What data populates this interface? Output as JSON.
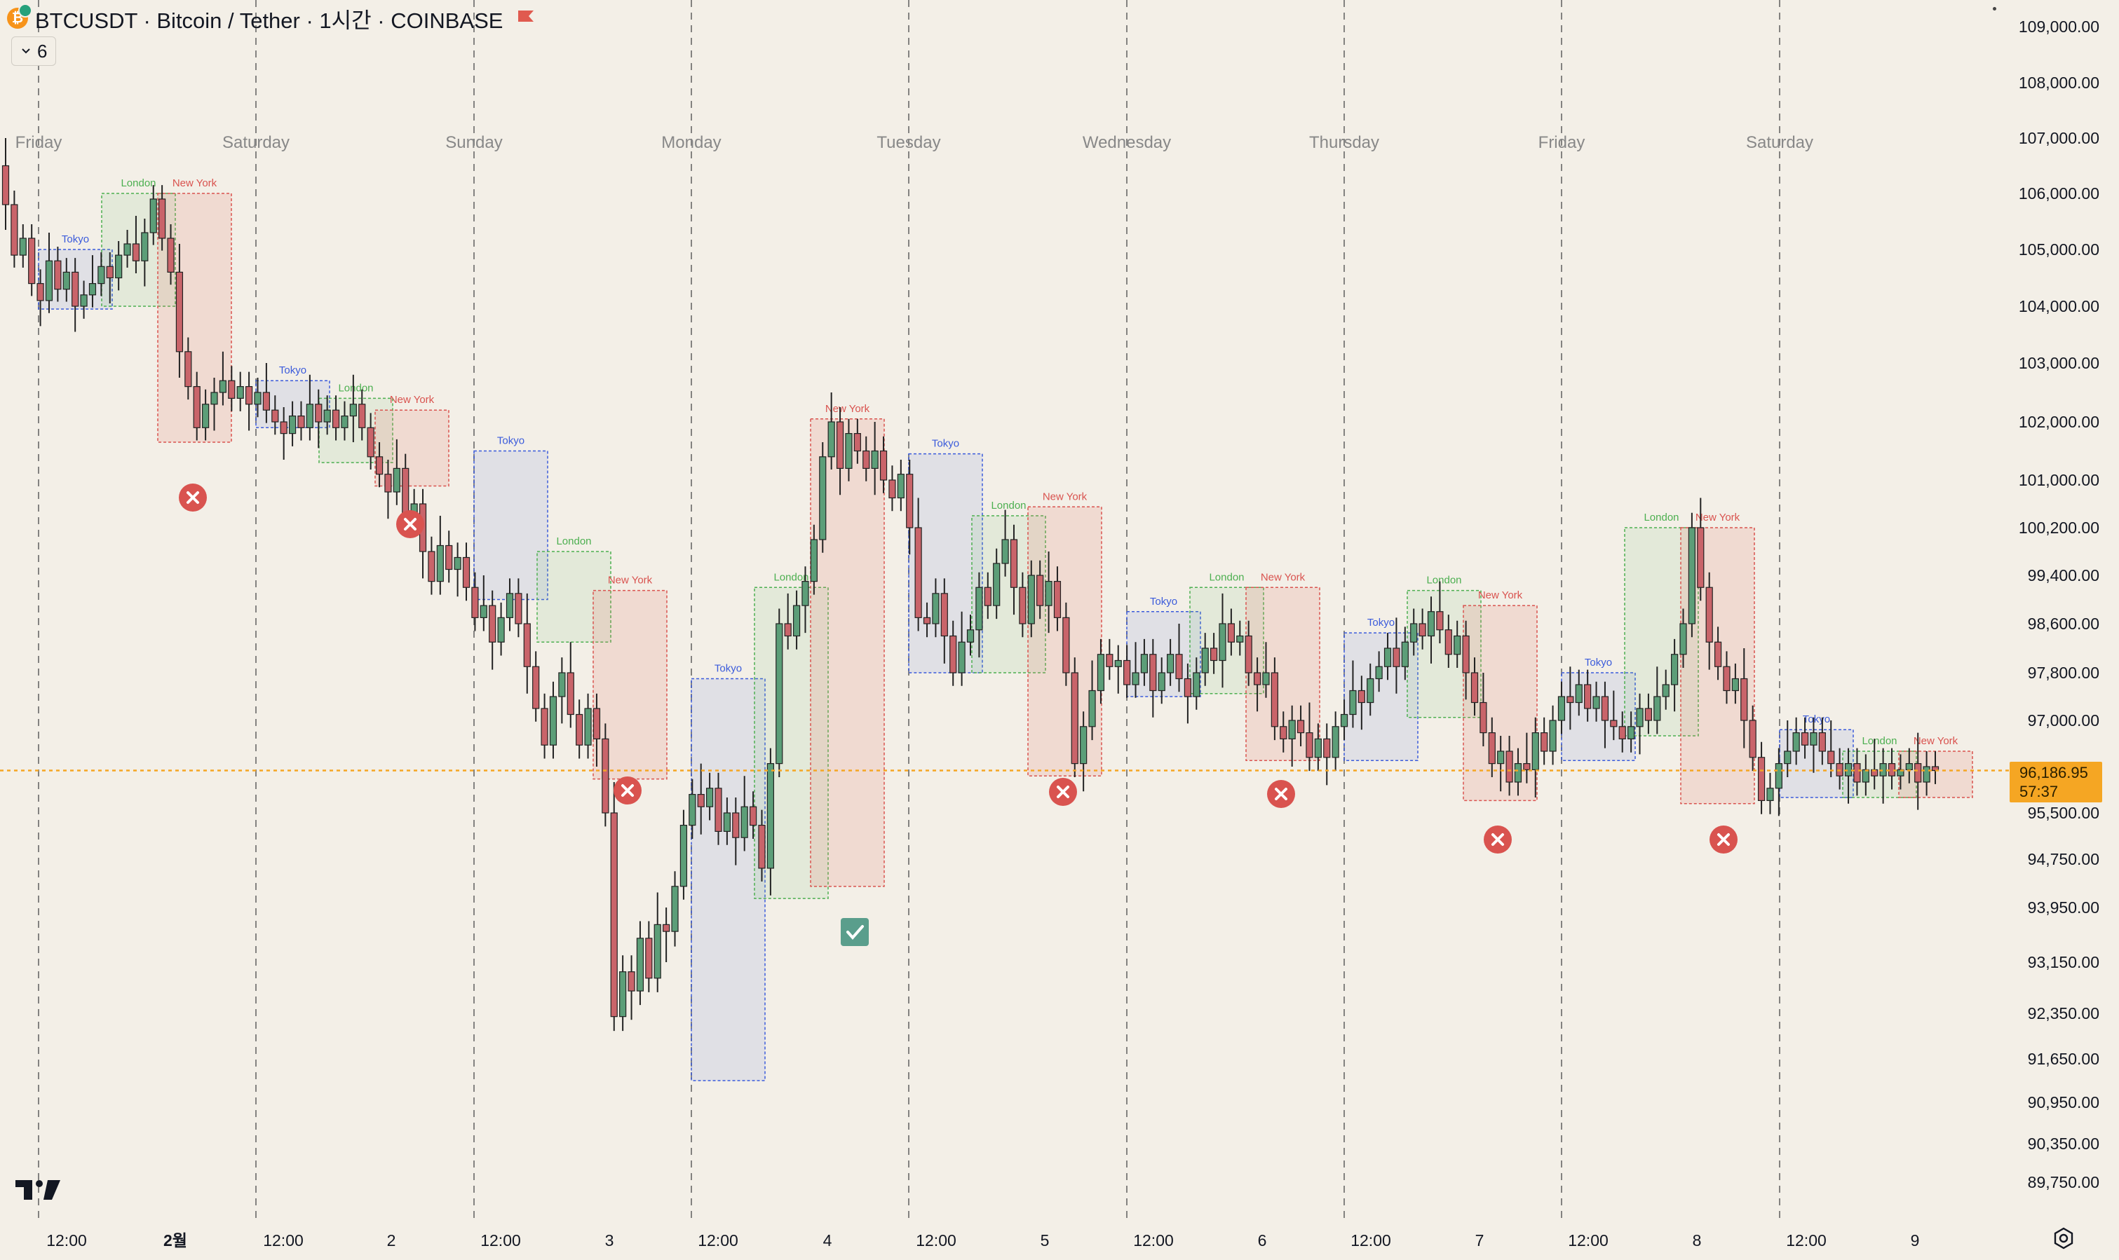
{
  "header": {
    "title": "BTCUSDT · Bitcoin / Tether · 1시간 · COINBASE",
    "icon": "bitcoin-tether-icon",
    "flag_icon": "flag-icon",
    "indicator_count": "6"
  },
  "price_axis": {
    "labels": [
      "109,000.00",
      "108,000.00",
      "107,000.00",
      "106,000.00",
      "105,000.00",
      "104,000.00",
      "103,000.00",
      "102,000.00",
      "101,000.00",
      "100,200.00",
      "99,400.00",
      "98,600.00",
      "97,800.00",
      "97,000.00",
      "95,500.00",
      "94,750.00",
      "93,950.00",
      "93,150.00",
      "92,350.00",
      "91,650.00",
      "90,950.00",
      "90,350.00",
      "89,750.00"
    ],
    "current_price": "96,186.95",
    "countdown": "57:37",
    "current_price_color": "#f5a623"
  },
  "day_labels": [
    "Friday",
    "Saturday",
    "Sunday",
    "Monday",
    "Tuesday",
    "Wednesday",
    "Thursday",
    "Friday",
    "Saturday"
  ],
  "time_axis": [
    "12:00",
    "2월",
    "12:00",
    "2",
    "12:00",
    "3",
    "12:00",
    "4",
    "12:00",
    "5",
    "12:00",
    "6",
    "12:00",
    "7",
    "12:00",
    "8",
    "12:00",
    "9"
  ],
  "sessions": [
    {
      "name": "Tokyo",
      "color": "#3b5bdb"
    },
    {
      "name": "London",
      "color": "#4caf50"
    },
    {
      "name": "New York",
      "color": "#d9534f"
    }
  ],
  "signals": [
    {
      "type": "fail",
      "icon": "x-circle-icon"
    },
    {
      "type": "fail",
      "icon": "x-circle-icon"
    },
    {
      "type": "fail",
      "icon": "x-circle-icon"
    },
    {
      "type": "success",
      "icon": "check-square-icon"
    },
    {
      "type": "fail",
      "icon": "x-circle-icon"
    },
    {
      "type": "fail",
      "icon": "x-circle-icon"
    },
    {
      "type": "fail",
      "icon": "x-circle-icon"
    },
    {
      "type": "fail",
      "icon": "x-circle-icon"
    }
  ],
  "chart_data": {
    "type": "candlestick",
    "symbol": "BTCUSDT",
    "interval": "1시간",
    "exchange": "COINBASE",
    "y_axis_values": [
      109000,
      108000,
      107000,
      106000,
      105000,
      104000,
      103000,
      102000,
      101000,
      100200,
      99400,
      98600,
      97800,
      97000,
      95500,
      94750,
      93950,
      93150,
      92350,
      91650,
      90950,
      90350,
      89750
    ],
    "current_price": 96186.95,
    "sessions": [
      {
        "name": "Tokyo",
        "day": "Fri",
        "low": 103950,
        "high": 105000
      },
      {
        "name": "London",
        "day": "Fri",
        "low": 104000,
        "high": 106000
      },
      {
        "name": "New York",
        "day": "Fri",
        "low": 101650,
        "high": 106000
      },
      {
        "name": "Tokyo",
        "day": "Sat",
        "low": 101900,
        "high": 102700
      },
      {
        "name": "London",
        "day": "Sat",
        "low": 101300,
        "high": 102400
      },
      {
        "name": "New York",
        "day": "Sat",
        "low": 100900,
        "high": 102200
      },
      {
        "name": "Tokyo",
        "day": "Sun",
        "low": 99000,
        "high": 101500
      },
      {
        "name": "London",
        "day": "Sun",
        "low": 98300,
        "high": 99800
      },
      {
        "name": "New York",
        "day": "Sun",
        "low": 96050,
        "high": 99150
      },
      {
        "name": "Tokyo",
        "day": "Mon",
        "low": 91300,
        "high": 97700
      },
      {
        "name": "London",
        "day": "Mon",
        "low": 94100,
        "high": 99200
      },
      {
        "name": "New York",
        "day": "Mon",
        "low": 94300,
        "high": 102050
      },
      {
        "name": "Tokyo",
        "day": "Tue",
        "low": 97800,
        "high": 101450
      },
      {
        "name": "London",
        "day": "Tue",
        "low": 97800,
        "high": 100400
      },
      {
        "name": "New York",
        "day": "Tue",
        "low": 96100,
        "high": 100550
      },
      {
        "name": "Tokyo",
        "day": "Wed",
        "low": 97400,
        "high": 98800
      },
      {
        "name": "London",
        "day": "Wed",
        "low": 97450,
        "high": 99200
      },
      {
        "name": "New York",
        "day": "Wed",
        "low": 96350,
        "high": 99200
      },
      {
        "name": "Tokyo",
        "day": "Thu",
        "low": 96350,
        "high": 98450
      },
      {
        "name": "London",
        "day": "Thu",
        "low": 97050,
        "high": 99150
      },
      {
        "name": "New York",
        "day": "Thu",
        "low": 95700,
        "high": 98900
      },
      {
        "name": "Tokyo",
        "day": "Fri",
        "low": 96350,
        "high": 97800
      },
      {
        "name": "London",
        "day": "Fri",
        "low": 96750,
        "high": 100200
      },
      {
        "name": "New York",
        "day": "Fri",
        "low": 95650,
        "high": 100200
      },
      {
        "name": "Tokyo",
        "day": "Sat",
        "low": 95750,
        "high": 96850
      },
      {
        "name": "London",
        "day": "Sat",
        "low": 95750,
        "high": 96500
      },
      {
        "name": "New York",
        "day": "Sat",
        "low": 95750,
        "high": 96500
      }
    ],
    "candles": [
      [
        106500,
        105800
      ],
      [
        105800,
        104900
      ],
      [
        104900,
        105200
      ],
      [
        105200,
        104400
      ],
      [
        104400,
        104100
      ],
      [
        104100,
        104800
      ],
      [
        104800,
        104300
      ],
      [
        104300,
        104600
      ],
      [
        104600,
        104000
      ],
      [
        104000,
        104200
      ],
      [
        104200,
        104400
      ],
      [
        104400,
        104700
      ],
      [
        104700,
        104500
      ],
      [
        104500,
        104900
      ],
      [
        104900,
        105100
      ],
      [
        105100,
        104800
      ],
      [
        104800,
        105300
      ],
      [
        105300,
        105900
      ],
      [
        105900,
        105200
      ],
      [
        105200,
        104600
      ],
      [
        104600,
        103200
      ],
      [
        103200,
        102600
      ],
      [
        102600,
        101900
      ],
      [
        101900,
        102300
      ],
      [
        102300,
        102500
      ],
      [
        102500,
        102700
      ],
      [
        102700,
        102400
      ],
      [
        102400,
        102600
      ],
      [
        102600,
        102300
      ],
      [
        102300,
        102500
      ],
      [
        102500,
        102200
      ],
      [
        102200,
        102000
      ],
      [
        102000,
        101800
      ],
      [
        101800,
        102100
      ],
      [
        102100,
        101900
      ],
      [
        101900,
        102300
      ],
      [
        102300,
        102000
      ],
      [
        102000,
        102200
      ],
      [
        102200,
        101900
      ],
      [
        101900,
        102100
      ],
      [
        102100,
        102300
      ],
      [
        102300,
        101900
      ],
      [
        101900,
        101400
      ],
      [
        101400,
        101100
      ],
      [
        101100,
        100800
      ],
      [
        100800,
        101200
      ],
      [
        101200,
        100400
      ],
      [
        100400,
        100600
      ],
      [
        100600,
        99800
      ],
      [
        99800,
        99300
      ],
      [
        99300,
        99900
      ],
      [
        99900,
        99500
      ],
      [
        99500,
        99700
      ],
      [
        99700,
        99200
      ],
      [
        99200,
        98700
      ],
      [
        98700,
        98900
      ],
      [
        98900,
        98300
      ],
      [
        98300,
        98700
      ],
      [
        98700,
        99100
      ],
      [
        99100,
        98600
      ],
      [
        98600,
        97900
      ],
      [
        97900,
        97200
      ],
      [
        97200,
        96600
      ],
      [
        96600,
        97400
      ],
      [
        97400,
        97800
      ],
      [
        97800,
        97100
      ],
      [
        97100,
        96600
      ],
      [
        96600,
        97200
      ],
      [
        97200,
        96700
      ],
      [
        96700,
        95500
      ],
      [
        95500,
        92300
      ],
      [
        92300,
        93000
      ],
      [
        93000,
        92700
      ],
      [
        92700,
        93500
      ],
      [
        93500,
        92900
      ],
      [
        92900,
        93700
      ],
      [
        93700,
        93600
      ],
      [
        93600,
        94300
      ],
      [
        94300,
        95300
      ],
      [
        95300,
        95800
      ],
      [
        95800,
        95600
      ],
      [
        95600,
        95900
      ],
      [
        95900,
        95200
      ],
      [
        95200,
        95500
      ],
      [
        95500,
        95100
      ],
      [
        95100,
        95600
      ],
      [
        95600,
        95300
      ],
      [
        95300,
        94600
      ],
      [
        94600,
        96300
      ],
      [
        96300,
        98600
      ],
      [
        98600,
        98400
      ],
      [
        98400,
        98900
      ],
      [
        98900,
        99300
      ],
      [
        99300,
        100000
      ],
      [
        100000,
        101400
      ],
      [
        101400,
        102000
      ],
      [
        102000,
        101200
      ],
      [
        101200,
        101800
      ],
      [
        101800,
        101500
      ],
      [
        101500,
        101200
      ],
      [
        101200,
        101500
      ],
      [
        101500,
        101000
      ],
      [
        101000,
        100700
      ],
      [
        100700,
        101100
      ],
      [
        101100,
        100200
      ],
      [
        100200,
        98700
      ],
      [
        98700,
        98600
      ],
      [
        98600,
        99100
      ],
      [
        99100,
        98400
      ],
      [
        98400,
        97800
      ],
      [
        97800,
        98300
      ],
      [
        98300,
        98500
      ],
      [
        98500,
        99200
      ],
      [
        99200,
        98900
      ],
      [
        98900,
        99600
      ],
      [
        99600,
        100000
      ],
      [
        100000,
        99200
      ],
      [
        99200,
        98600
      ],
      [
        98600,
        99400
      ],
      [
        99400,
        98900
      ],
      [
        98900,
        99300
      ],
      [
        99300,
        98700
      ],
      [
        98700,
        97800
      ],
      [
        97800,
        96300
      ],
      [
        96300,
        96900
      ],
      [
        96900,
        97500
      ],
      [
        97500,
        98100
      ],
      [
        98100,
        97900
      ],
      [
        97900,
        98000
      ],
      [
        98000,
        97600
      ],
      [
        97600,
        97800
      ],
      [
        97800,
        98100
      ],
      [
        98100,
        97500
      ],
      [
        97500,
        97800
      ],
      [
        97800,
        98100
      ],
      [
        98100,
        97700
      ],
      [
        97700,
        97400
      ],
      [
        97400,
        97800
      ],
      [
        97800,
        98200
      ],
      [
        98200,
        98000
      ],
      [
        98000,
        98600
      ],
      [
        98600,
        98300
      ],
      [
        98300,
        98400
      ],
      [
        98400,
        97800
      ],
      [
        97800,
        97600
      ],
      [
        97600,
        97800
      ],
      [
        97800,
        96900
      ],
      [
        96900,
        96700
      ],
      [
        96700,
        97000
      ],
      [
        97000,
        96800
      ],
      [
        96800,
        96400
      ],
      [
        96400,
        96700
      ],
      [
        96700,
        96400
      ],
      [
        96400,
        96900
      ],
      [
        96900,
        97100
      ],
      [
        97100,
        97500
      ],
      [
        97500,
        97300
      ],
      [
        97300,
        97700
      ],
      [
        97700,
        97900
      ],
      [
        97900,
        98200
      ],
      [
        98200,
        97900
      ],
      [
        97900,
        98300
      ],
      [
        98300,
        98600
      ],
      [
        98600,
        98400
      ],
      [
        98400,
        98800
      ],
      [
        98800,
        98500
      ],
      [
        98500,
        98100
      ],
      [
        98100,
        98400
      ],
      [
        98400,
        97800
      ],
      [
        97800,
        97300
      ],
      [
        97300,
        96800
      ],
      [
        96800,
        96300
      ],
      [
        96300,
        96500
      ],
      [
        96500,
        96000
      ],
      [
        96000,
        96300
      ],
      [
        96300,
        96200
      ],
      [
        96200,
        96800
      ],
      [
        96800,
        96500
      ],
      [
        96500,
        97000
      ],
      [
        97000,
        97400
      ],
      [
        97400,
        97300
      ],
      [
        97300,
        97600
      ],
      [
        97600,
        97200
      ],
      [
        97200,
        97400
      ],
      [
        97400,
        97000
      ],
      [
        97000,
        96900
      ],
      [
        96900,
        96700
      ],
      [
        96700,
        96900
      ],
      [
        96900,
        97200
      ],
      [
        97200,
        97000
      ],
      [
        97000,
        97400
      ],
      [
        97400,
        97600
      ],
      [
        97600,
        98100
      ],
      [
        98100,
        98600
      ],
      [
        98600,
        100200
      ],
      [
        100200,
        99200
      ],
      [
        99200,
        98300
      ],
      [
        98300,
        97900
      ],
      [
        97900,
        97500
      ],
      [
        97500,
        97700
      ],
      [
        97700,
        97000
      ],
      [
        97000,
        96400
      ],
      [
        96400,
        95700
      ],
      [
        95700,
        95900
      ],
      [
        95900,
        96300
      ],
      [
        96300,
        96500
      ],
      [
        96500,
        96800
      ],
      [
        96800,
        96600
      ],
      [
        96600,
        96800
      ],
      [
        96800,
        96500
      ],
      [
        96500,
        96300
      ],
      [
        96300,
        96100
      ],
      [
        96100,
        96300
      ],
      [
        96300,
        96000
      ],
      [
        96000,
        96200
      ],
      [
        96200,
        96100
      ],
      [
        96100,
        96300
      ],
      [
        96300,
        96100
      ],
      [
        96100,
        96200
      ],
      [
        96200,
        96300
      ],
      [
        96300,
        96000
      ],
      [
        96000,
        96250
      ],
      [
        96250,
        96187
      ]
    ]
  }
}
